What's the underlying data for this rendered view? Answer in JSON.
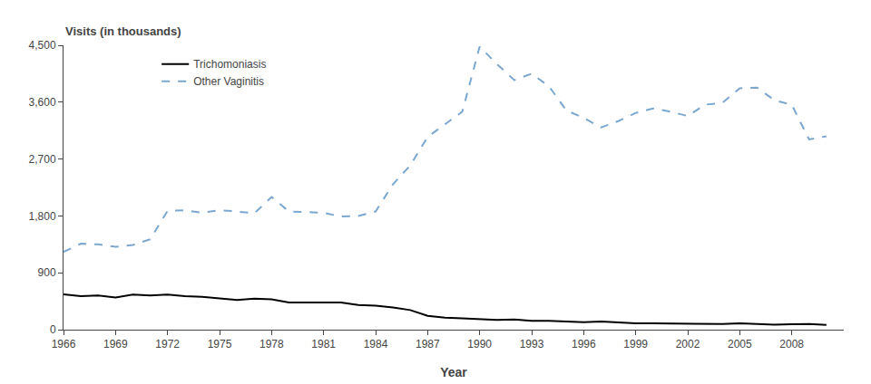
{
  "chart_data": {
    "type": "line",
    "xlabel": "Year",
    "ylabel": "Visits (in thousands)",
    "x": [
      1966,
      1967,
      1968,
      1969,
      1970,
      1971,
      1972,
      1973,
      1974,
      1975,
      1976,
      1977,
      1978,
      1979,
      1980,
      1981,
      1982,
      1983,
      1984,
      1985,
      1986,
      1987,
      1988,
      1989,
      1990,
      1991,
      1992,
      1993,
      1994,
      1995,
      1996,
      1997,
      1998,
      1999,
      2000,
      2001,
      2002,
      2003,
      2004,
      2005,
      2006,
      2007,
      2008,
      2009,
      2010
    ],
    "series": [
      {
        "name": "Trichomoniasis",
        "color": "#000000",
        "line_style": "solid",
        "values": [
          560,
          530,
          540,
          510,
          555,
          540,
          555,
          530,
          520,
          490,
          470,
          490,
          480,
          430,
          430,
          420,
          430,
          390,
          380,
          350,
          310,
          220,
          190,
          180,
          170,
          155,
          160,
          140,
          140,
          135,
          120,
          130,
          110,
          100,
          100,
          95,
          100,
          90,
          90,
          100,
          85,
          80,
          85,
          90,
          75
        ]
      },
      {
        "name": "Other Vaginitis",
        "color": "#7aa7d0",
        "line_style": "dashed",
        "values": [
          1230,
          1360,
          1350,
          1310,
          1340,
          1430,
          1880,
          1890,
          1850,
          1890,
          1870,
          1840,
          2100,
          1870,
          1860,
          1850,
          1790,
          1800,
          1870,
          2300,
          2600,
          3050,
          3250,
          3450,
          4480,
          4200,
          3950,
          4050,
          3850,
          3470,
          3350,
          3200,
          3300,
          3430,
          3500,
          3450,
          3380,
          3560,
          3590,
          3820,
          3830,
          3630,
          3560,
          3010,
          3060
        ]
      }
    ],
    "xlim": [
      1966,
      2011
    ],
    "xticks": [
      1966,
      1969,
      1972,
      1975,
      1978,
      1981,
      1984,
      1987,
      1990,
      1993,
      1996,
      1999,
      2002,
      2005,
      2008
    ],
    "ylim": [
      0,
      4500
    ],
    "yticks": [
      0,
      900,
      {
        "value": 1800,
        "label": "1,800"
      },
      {
        "value": 2700,
        "label": "2,700"
      },
      {
        "value": 3600,
        "label": "3,600"
      },
      {
        "value": 4500,
        "label": "4,500"
      }
    ],
    "grid": false,
    "legend": "upper left"
  }
}
